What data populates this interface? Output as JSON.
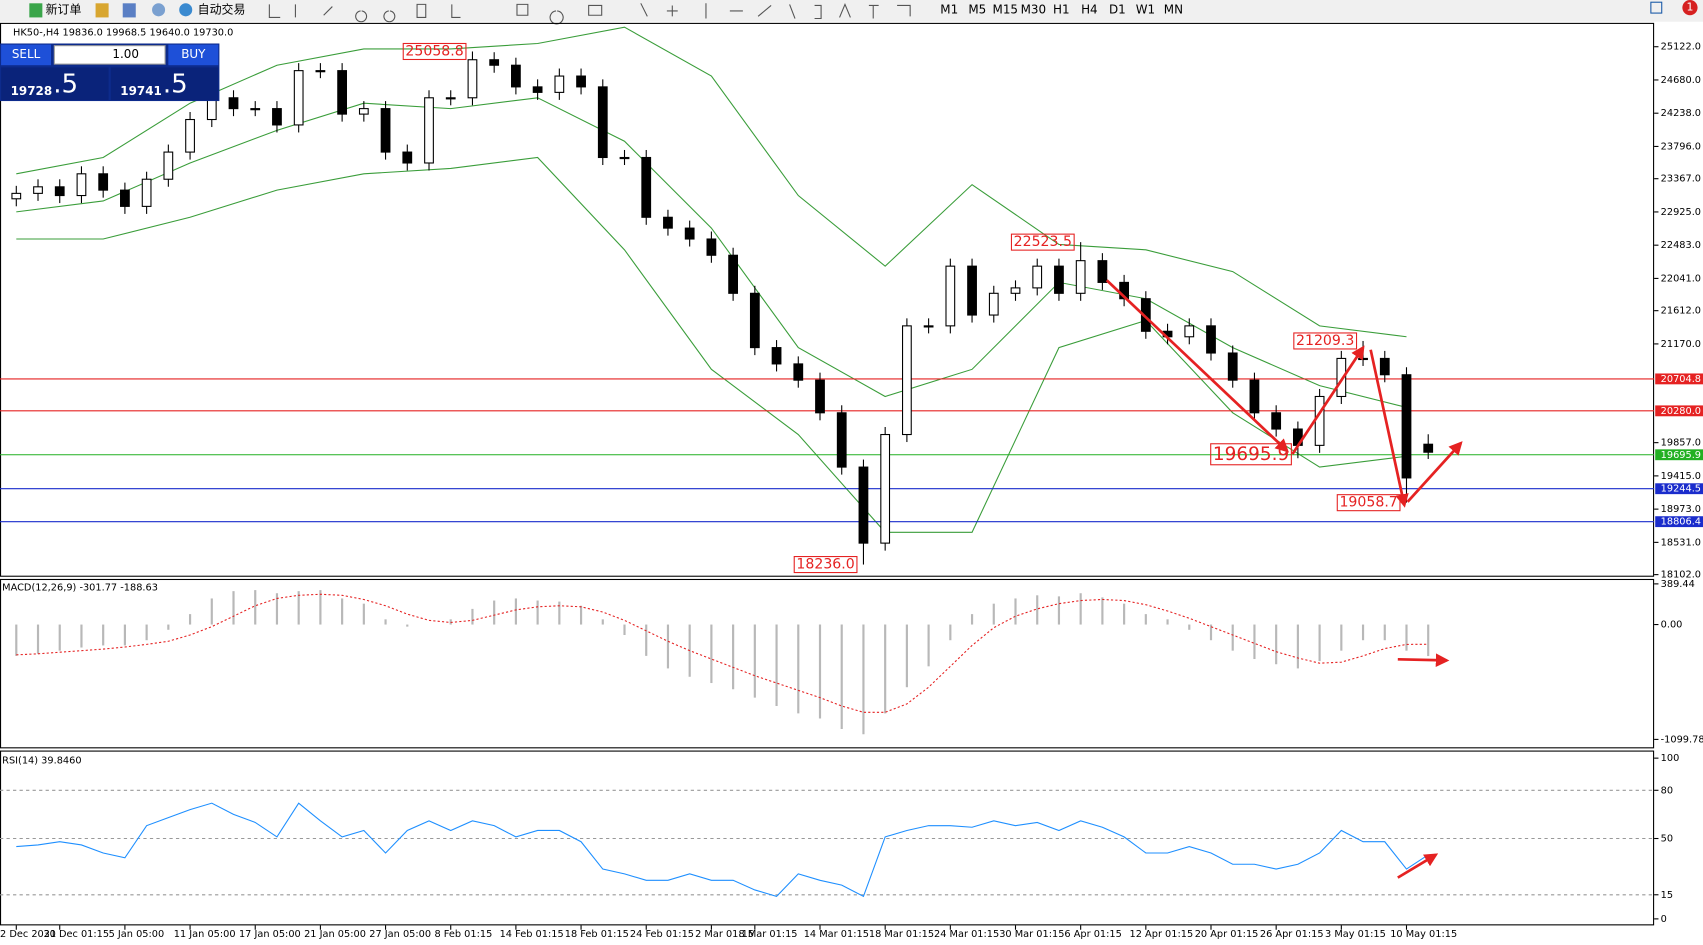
{
  "toolbar": {
    "new_order": "新订单",
    "auto_trading": "自动交易",
    "timeframes": [
      "M1",
      "M5",
      "M15",
      "M30",
      "H1",
      "H4",
      "D1",
      "W1",
      "MN"
    ],
    "alert_count": "1"
  },
  "trade_panel": {
    "sell": "SELL",
    "buy": "BUY",
    "lot": "1.00",
    "sell_price": "19728",
    "sell_price_digit": ".5",
    "buy_price": "19741",
    "buy_price_digit": ".5"
  },
  "chart_data": [
    {
      "type": "candlestick",
      "title": "HK50-,H4  19836.0 19968.5 19640.0 19730.0",
      "categories": [
        "2 Dec 2021",
        null,
        "30 Dec 01:15",
        null,
        null,
        "5 Jan 05:00",
        null,
        null,
        "11 Jan 05:00",
        null,
        null,
        "17 Jan 05:00",
        null,
        null,
        "21 Jan 05:00",
        null,
        null,
        "27 Jan 05:00",
        null,
        null,
        "8 Feb 01:15",
        null,
        null,
        "14 Feb 01:15",
        null,
        null,
        "18 Feb 01:15",
        null,
        null,
        "24 Feb 01:15",
        null,
        null,
        "2 Mar 01:15",
        null,
        "8 Mar 01:15",
        null,
        null,
        "14 Mar 01:15",
        null,
        null,
        "18 Mar 01:15",
        null,
        null,
        "24 Mar 01:15",
        null,
        null,
        "30 Mar 01:15",
        null,
        null,
        "6 Apr 01:15",
        null,
        null,
        "12 Apr 01:15",
        null,
        null,
        "20 Apr 01:15",
        null,
        null,
        "26 Apr 01:15",
        null,
        null,
        "3 May 01:15",
        null,
        null,
        "10 May 01:15",
        null
      ],
      "open": [
        23100,
        23172,
        23259,
        23143,
        23432,
        23215,
        22999,
        23360,
        23721,
        24154,
        24443,
        24299,
        24299,
        24082,
        24804,
        24804,
        24226,
        24299,
        23721,
        23576,
        24443,
        24443,
        24949,
        24876,
        24588,
        24515,
        24732,
        24588,
        23649,
        23649,
        22854,
        22710,
        22565,
        22349,
        21843,
        21121,
        20904,
        20688,
        20254,
        19532,
        18521,
        19965,
        21410,
        21410,
        22204,
        21554,
        21843,
        21915,
        22204,
        21843,
        22277,
        21988,
        21771,
        21338,
        21265,
        21410,
        21049,
        20688,
        20254,
        20038,
        19821,
        20471,
        20977,
        20977,
        20760,
        19836.0
      ],
      "high": [
        23272,
        23359,
        23359,
        23532,
        23532,
        23315,
        23460,
        23821,
        24254,
        24543,
        24543,
        24399,
        24399,
        24904,
        24904,
        24904,
        24399,
        24399,
        23821,
        24543,
        24543,
        25058.8,
        25049,
        24976,
        24688,
        24832,
        24832,
        24688,
        23749,
        23749,
        22954,
        22810,
        22665,
        22449,
        21943,
        21221,
        21004,
        20788,
        20354,
        19632,
        20065,
        21510,
        21510,
        22304,
        22304,
        21943,
        22015,
        22304,
        22304,
        22523.5,
        22377,
        22088,
        21871,
        21438,
        21510,
        21510,
        21149,
        20788,
        20354,
        20138,
        20571,
        21077,
        21209.3,
        21077,
        20860,
        19968.5
      ],
      "low": [
        23000,
        23072,
        23043,
        23043,
        23115,
        22899,
        22899,
        23260,
        23621,
        24054,
        24199,
        24199,
        23982,
        23982,
        24704,
        24126,
        24126,
        23621,
        23476,
        23476,
        24343,
        24343,
        24776,
        24488,
        24415,
        24415,
        24488,
        23549,
        23549,
        22754,
        22610,
        22465,
        22249,
        21743,
        21021,
        20804,
        20588,
        20154,
        19432,
        18236.0,
        18421,
        19865,
        21310,
        21310,
        21454,
        21454,
        21743,
        21815,
        21743,
        21743,
        21888,
        21671,
        21238,
        21165,
        21165,
        20949,
        20588,
        20154,
        19938,
        19650,
        19721,
        20371,
        20877,
        20660,
        19058.7,
        19640.0
      ],
      "close": [
        23172,
        23259,
        23143,
        23432,
        23215,
        22999,
        23360,
        23721,
        24154,
        24443,
        24299,
        24299,
        24082,
        24804,
        24804,
        24226,
        24299,
        23721,
        23576,
        24443,
        24443,
        24949,
        24876,
        24588,
        24515,
        24732,
        24588,
        23649,
        23649,
        22854,
        22710,
        22565,
        22349,
        21843,
        21121,
        20904,
        20688,
        20254,
        19532,
        18521,
        19965,
        21410,
        21410,
        22204,
        21554,
        21843,
        21915,
        22204,
        21843,
        22277,
        21988,
        21771,
        21338,
        21265,
        21410,
        21049,
        20688,
        20254,
        20038,
        19821,
        20471,
        20977,
        20977,
        20760,
        19388,
        19730.0
      ],
      "bands": {
        "color": "#3a9d3a",
        "x": [
          0,
          4,
          8,
          12,
          16,
          20,
          24,
          28,
          32,
          36,
          40,
          44,
          48,
          52,
          56,
          60,
          64
        ],
        "upper": [
          23432,
          23649,
          24371,
          24876,
          25093,
          25093,
          25165,
          25382,
          24732,
          23143,
          22204,
          23288,
          22493,
          22421,
          22132,
          21410,
          21265
        ],
        "middle": [
          22926,
          23071,
          23576,
          24010,
          24371,
          24299,
          24443,
          23865,
          22710,
          21121,
          20471,
          20832,
          21988,
          21771,
          21121,
          20615,
          20326
        ],
        "lower": [
          22565,
          22565,
          22854,
          23215,
          23432,
          23504,
          23649,
          22421,
          20832,
          19965,
          18665,
          18665,
          21121,
          21482,
          20254,
          19532,
          19676
        ]
      },
      "ylim": [
        18088,
        25425
      ],
      "yticks": [
        {
          "value": 25122,
          "label": "25122.0"
        },
        {
          "value": 24680,
          "label": "24680.0"
        },
        {
          "value": 24238,
          "label": "24238.0"
        },
        {
          "value": 23796,
          "label": "23796.0"
        },
        {
          "value": 23367,
          "label": "23367.0"
        },
        {
          "value": 22925,
          "label": "22925.0"
        },
        {
          "value": 22483,
          "label": "22483.0"
        },
        {
          "value": 22041,
          "label": "22041.0"
        },
        {
          "value": 21612,
          "label": "21612.0"
        },
        {
          "value": 21170,
          "label": "21170.0"
        },
        {
          "value": 19857,
          "label": "19857.0"
        },
        {
          "value": 19415,
          "label": "19415.0"
        },
        {
          "value": 18973,
          "label": "18973.0"
        },
        {
          "value": 18531,
          "label": "18531.0"
        },
        {
          "value": 18102,
          "label": "18102.0"
        }
      ],
      "hlines": [
        {
          "value": 20704.8,
          "color": "#e52222"
        },
        {
          "value": 20280,
          "label": "20280.0",
          "color": "#e52222"
        },
        {
          "value": 19695.9,
          "color": "#22b022"
        },
        {
          "value": 19244.5,
          "color": "#1a2ccc"
        },
        {
          "value": 18806.4,
          "color": "#1a2ccc"
        }
      ],
      "annotations": [
        {
          "value": 25058.8,
          "x": 21
        },
        {
          "value": 22523.5,
          "x": 49
        },
        {
          "value": 21209.3,
          "x": 62
        },
        {
          "value": 19695.9,
          "x": 59
        },
        {
          "value": 19058.7,
          "x": 64
        },
        {
          "value": 18236,
          "label": "18236.0",
          "x": 39
        }
      ]
    },
    {
      "type": "macd",
      "title": "MACD(12,26,9) -301.77 -188.63",
      "histogram": [
        -300,
        -280,
        -250,
        -220,
        -200,
        -200,
        -150,
        -50,
        100,
        250,
        320,
        330,
        300,
        320,
        330,
        250,
        200,
        50,
        -20,
        0,
        50,
        150,
        230,
        250,
        230,
        220,
        180,
        50,
        -100,
        -300,
        -420,
        -500,
        -560,
        -620,
        -700,
        -780,
        -850,
        -900,
        -1000,
        -1050,
        -850,
        -600,
        -400,
        -150,
        100,
        200,
        250,
        280,
        270,
        300,
        260,
        200,
        100,
        50,
        -50,
        -150,
        -250,
        -330,
        -380,
        -420,
        -350,
        -250,
        -150,
        -150,
        -250,
        -301.77
      ],
      "histogram_color": "#b8b8b8",
      "signal": [
        -290,
        -280,
        -265,
        -250,
        -235,
        -215,
        -190,
        -160,
        -100,
        -20,
        80,
        180,
        250,
        280,
        290,
        280,
        240,
        180,
        100,
        40,
        20,
        40,
        90,
        140,
        170,
        180,
        170,
        120,
        40,
        -60,
        -160,
        -250,
        -330,
        -410,
        -490,
        -560,
        -630,
        -700,
        -780,
        -840,
        -840,
        -760,
        -600,
        -400,
        -200,
        -30,
        80,
        150,
        200,
        230,
        240,
        230,
        190,
        130,
        60,
        -20,
        -100,
        -180,
        -260,
        -320,
        -370,
        -360,
        -300,
        -230,
        -190,
        -188.63
      ],
      "signal_color": "#e52222",
      "ylim": [
        -1175.2,
        426.4
      ],
      "yticks": [
        389.44,
        {
          "value": 0,
          "label": "0.00"
        },
        -1099.78
      ]
    },
    {
      "type": "rsi",
      "title": "RSI(14) 39.8460",
      "values": [
        45,
        46,
        48,
        46,
        41,
        38,
        58,
        63,
        68,
        72,
        65,
        60,
        51,
        72,
        61,
        51,
        55,
        41,
        55,
        61,
        55,
        61,
        58,
        51,
        55,
        55,
        48,
        31,
        28,
        24,
        24,
        28,
        24,
        24,
        18,
        14,
        28,
        24,
        21,
        14,
        51,
        55,
        58,
        58,
        57,
        61,
        58,
        60,
        55,
        61,
        57,
        51,
        41,
        41,
        45,
        41,
        34,
        34,
        31,
        34,
        41,
        55,
        48,
        48,
        31,
        39.846
      ],
      "color": "#1e8fff",
      "ylim": [
        0,
        100
      ],
      "yticks": [
        100,
        80,
        50,
        15,
        0
      ],
      "levels": [
        80,
        50,
        15
      ]
    }
  ]
}
